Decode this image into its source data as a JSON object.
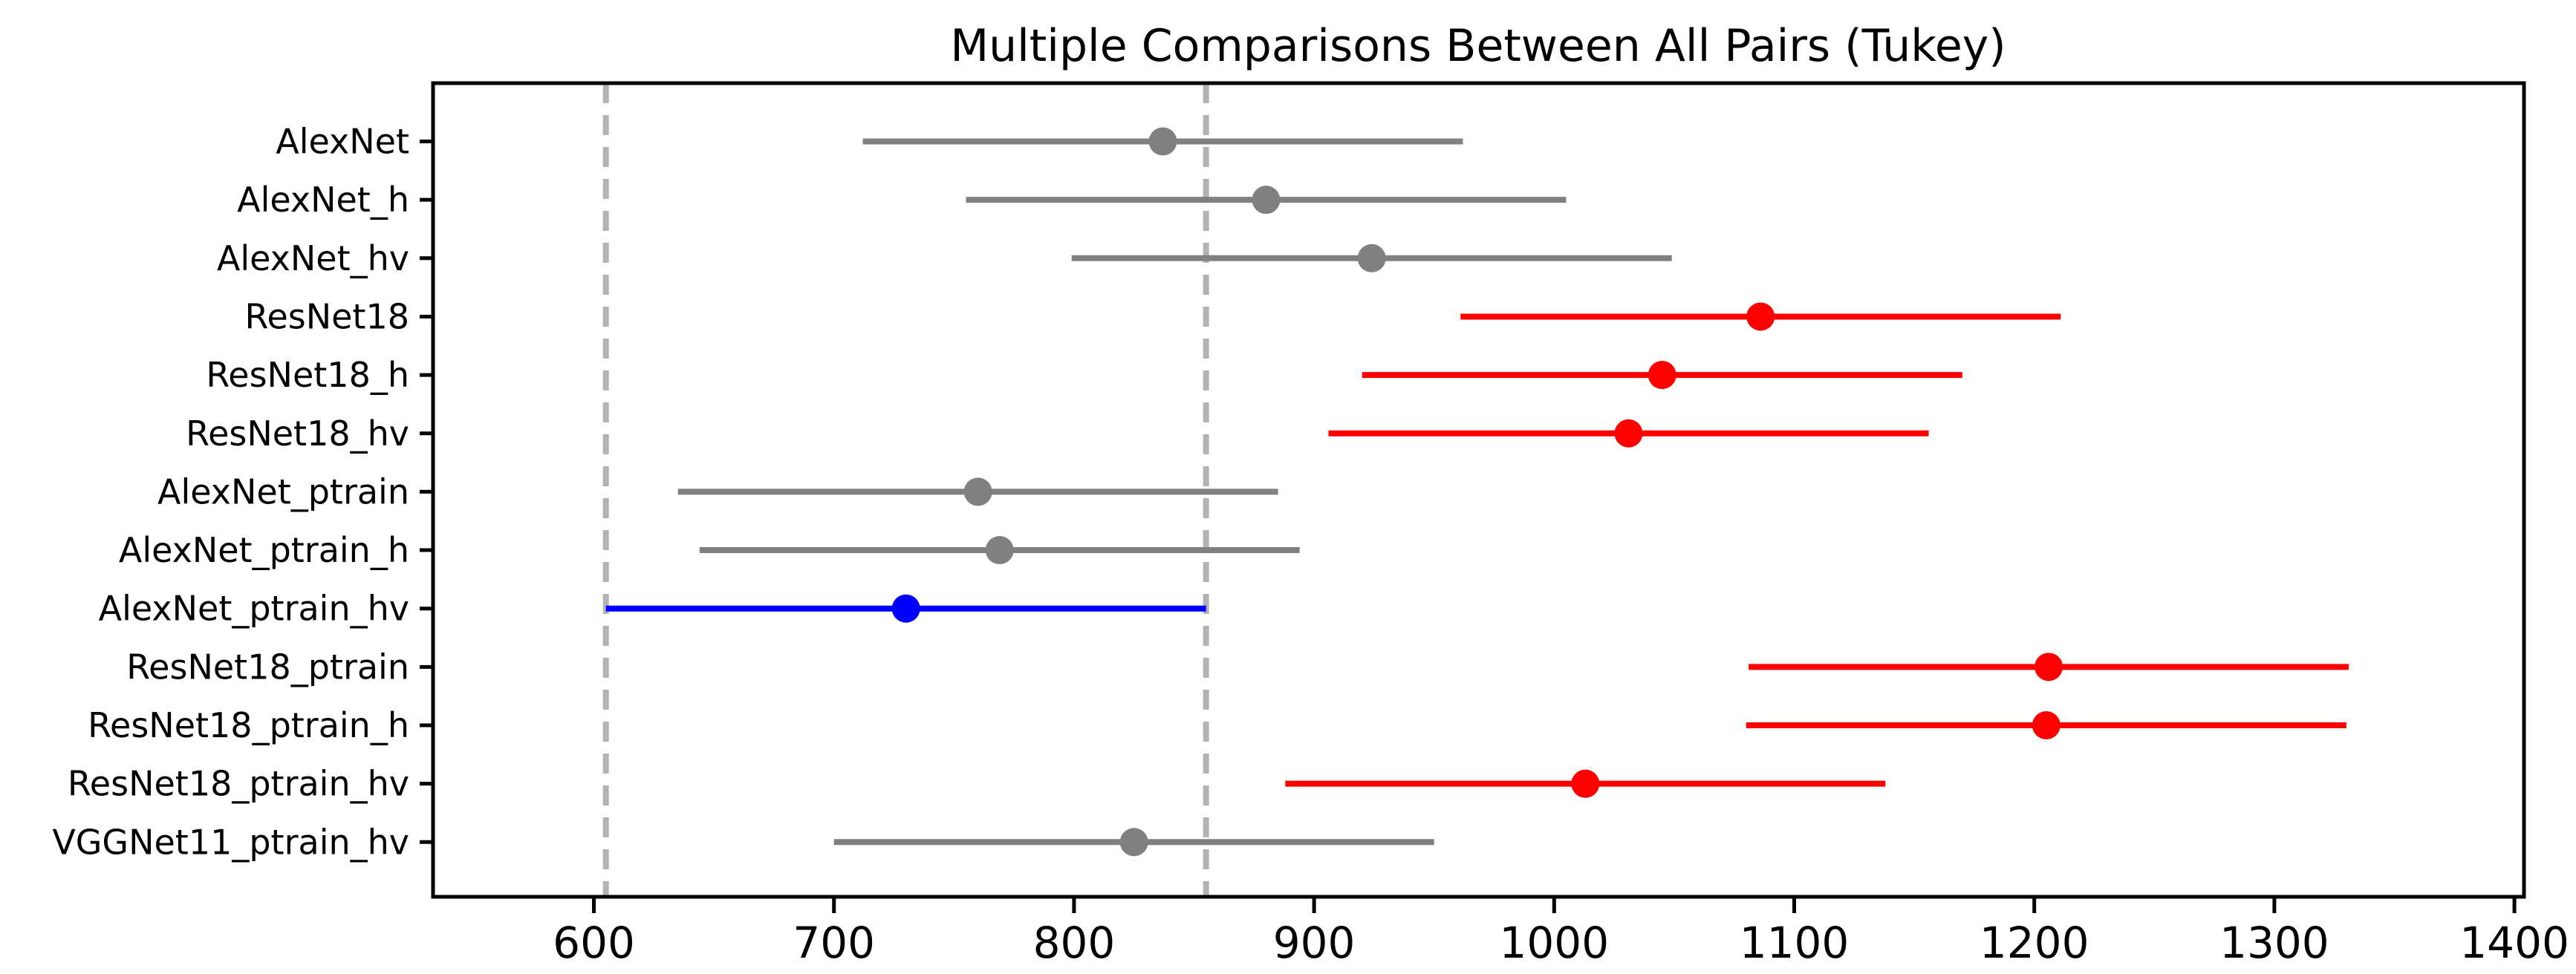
{
  "title": "Multiple Comparisons Between All Pairs (Tukey)",
  "colors": {
    "gray": "#808080",
    "red": "#ff0000",
    "blue": "#0000ff",
    "dashed_line": "#b3b3b3",
    "axis": "#000000"
  },
  "chart_data": {
    "type": "scatter",
    "subtype": "horizontal-errorbar-tukey",
    "title": "Multiple Comparisons Between All Pairs (Tukey)",
    "xlabel": "",
    "ylabel": "",
    "grid": false,
    "legend": "none",
    "xlim": [
      533,
      1404
    ],
    "x_ticks": [
      600,
      700,
      800,
      900,
      1000,
      1100,
      1200,
      1300,
      1400
    ],
    "categories": [
      "AlexNet",
      "AlexNet_h",
      "AlexNet_hv",
      "ResNet18",
      "ResNet18_h",
      "ResNet18_hv",
      "AlexNet_ptrain",
      "AlexNet_ptrain_h",
      "AlexNet_ptrain_hv",
      "ResNet18_ptrain",
      "ResNet18_ptrain_h",
      "ResNet18_ptrain_hv",
      "VGGNet11_ptrain_hv"
    ],
    "points": [
      {
        "label": "AlexNet",
        "value": 837,
        "ci_low": 712,
        "ci_high": 962,
        "color": "gray"
      },
      {
        "label": "AlexNet_h",
        "value": 880,
        "ci_low": 755,
        "ci_high": 1005,
        "color": "gray"
      },
      {
        "label": "AlexNet_hv",
        "value": 924,
        "ci_low": 799,
        "ci_high": 1049,
        "color": "gray"
      },
      {
        "label": "ResNet18",
        "value": 1086,
        "ci_low": 961,
        "ci_high": 1211,
        "color": "red"
      },
      {
        "label": "ResNet18_h",
        "value": 1045,
        "ci_low": 920,
        "ci_high": 1170,
        "color": "red"
      },
      {
        "label": "ResNet18_hv",
        "value": 1031,
        "ci_low": 906,
        "ci_high": 1156,
        "color": "red"
      },
      {
        "label": "AlexNet_ptrain",
        "value": 760,
        "ci_low": 635,
        "ci_high": 885,
        "color": "gray"
      },
      {
        "label": "AlexNet_ptrain_h",
        "value": 769,
        "ci_low": 644,
        "ci_high": 894,
        "color": "gray"
      },
      {
        "label": "AlexNet_ptrain_hv",
        "value": 730,
        "ci_low": 605,
        "ci_high": 855,
        "color": "blue"
      },
      {
        "label": "ResNet18_ptrain",
        "value": 1206,
        "ci_low": 1081,
        "ci_high": 1331,
        "color": "red"
      },
      {
        "label": "ResNet18_ptrain_h",
        "value": 1205,
        "ci_low": 1080,
        "ci_high": 1330,
        "color": "red"
      },
      {
        "label": "ResNet18_ptrain_hv",
        "value": 1013,
        "ci_low": 888,
        "ci_high": 1138,
        "color": "red"
      },
      {
        "label": "VGGNet11_ptrain_hv",
        "value": 825,
        "ci_low": 700,
        "ci_high": 950,
        "color": "gray"
      }
    ],
    "reference_lines": [
      605,
      855
    ],
    "highlighted_group": "AlexNet_ptrain_hv"
  }
}
